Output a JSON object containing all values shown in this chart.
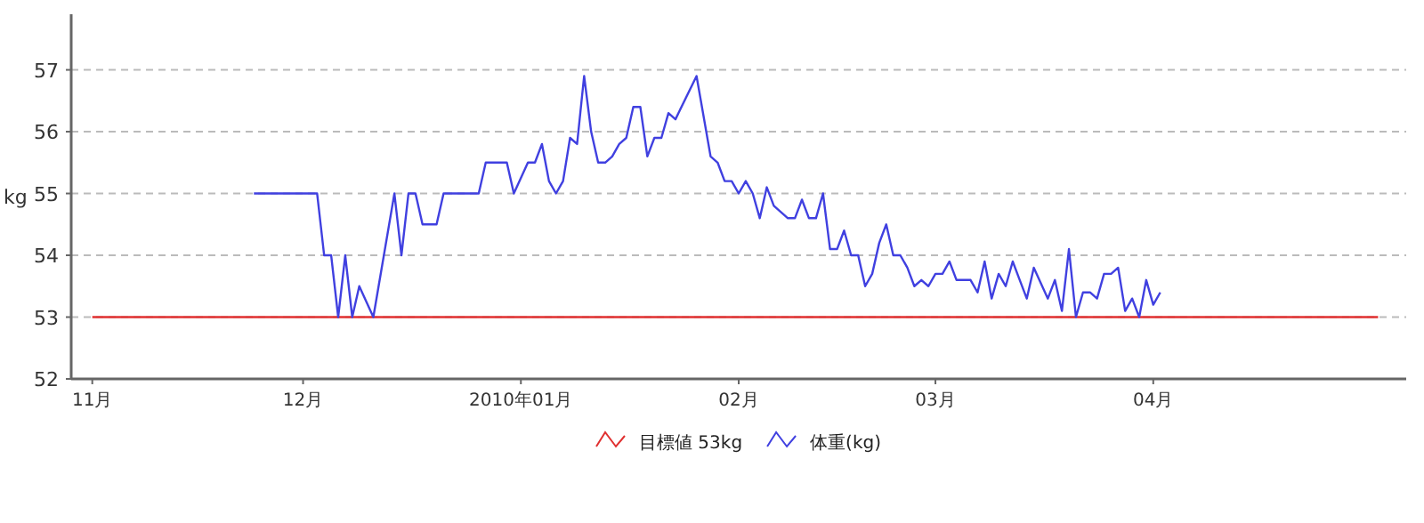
{
  "chart_data": {
    "type": "line",
    "ylabel": "kg",
    "ylim": [
      52,
      57.9
    ],
    "yticks": [
      52,
      53,
      54,
      55,
      56,
      57
    ],
    "xlim": [
      "2009-10-29",
      "2010-05-07"
    ],
    "xticks": [
      {
        "value": "2009-11-01",
        "label": "11月"
      },
      {
        "value": "2009-12-01",
        "label": "12月"
      },
      {
        "value": "2010-01-01",
        "label": "2010年01月"
      },
      {
        "value": "2010-02-01",
        "label": "02月"
      },
      {
        "value": "2010-03-01",
        "label": "03月"
      },
      {
        "value": "2010-04-01",
        "label": "04月"
      }
    ],
    "grid": "y",
    "legend": "bottom",
    "line_style": "solid",
    "series": [
      {
        "name": "目標値 53kg",
        "color": "#e03030",
        "x": [
          "2009-11-01",
          "2010-05-03"
        ],
        "values": [
          53,
          53
        ]
      },
      {
        "name": "体重(kg)",
        "color": "#4040e0",
        "x": [
          "2009-11-24",
          "2009-12-03",
          "2009-12-04",
          "2009-12-05",
          "2009-12-06",
          "2009-12-07",
          "2009-12-08",
          "2009-12-09",
          "2009-12-11",
          "2009-12-14",
          "2009-12-15",
          "2009-12-16",
          "2009-12-17",
          "2009-12-18",
          "2009-12-20",
          "2009-12-21",
          "2009-12-26",
          "2009-12-27",
          "2009-12-30",
          "2009-12-31",
          "2010-01-02",
          "2010-01-03",
          "2010-01-04",
          "2010-01-05",
          "2010-01-06",
          "2010-01-07",
          "2010-01-08",
          "2010-01-09",
          "2010-01-10",
          "2010-01-11",
          "2010-01-12",
          "2010-01-13",
          "2010-01-14",
          "2010-01-15",
          "2010-01-16",
          "2010-01-17",
          "2010-01-18",
          "2010-01-19",
          "2010-01-20",
          "2010-01-21",
          "2010-01-22",
          "2010-01-23",
          "2010-01-26",
          "2010-01-28",
          "2010-01-29",
          "2010-01-30",
          "2010-01-31",
          "2010-02-01",
          "2010-02-02",
          "2010-02-03",
          "2010-02-04",
          "2010-02-05",
          "2010-02-06",
          "2010-02-07",
          "2010-02-08",
          "2010-02-09",
          "2010-02-10",
          "2010-02-11",
          "2010-02-12",
          "2010-02-13",
          "2010-02-14",
          "2010-02-15",
          "2010-02-16",
          "2010-02-17",
          "2010-02-18",
          "2010-02-19",
          "2010-02-20",
          "2010-02-21",
          "2010-02-22",
          "2010-02-23",
          "2010-02-24",
          "2010-02-25",
          "2010-02-26",
          "2010-02-27",
          "2010-02-28",
          "2010-03-01",
          "2010-03-02",
          "2010-03-03",
          "2010-03-04",
          "2010-03-06",
          "2010-03-07",
          "2010-03-08",
          "2010-03-09",
          "2010-03-10",
          "2010-03-11",
          "2010-03-12",
          "2010-03-13",
          "2010-03-14",
          "2010-03-15",
          "2010-03-17",
          "2010-03-18",
          "2010-03-19",
          "2010-03-20",
          "2010-03-21",
          "2010-03-22",
          "2010-03-23",
          "2010-03-24",
          "2010-03-25",
          "2010-03-26",
          "2010-03-27",
          "2010-03-28",
          "2010-03-29",
          "2010-03-30",
          "2010-03-31",
          "2010-04-01",
          "2010-04-02"
        ],
        "values": [
          55,
          55,
          54,
          54,
          53,
          54,
          53,
          53.5,
          53,
          55,
          54,
          55,
          55,
          54.5,
          54.5,
          55,
          55,
          55.5,
          55.5,
          55,
          55.5,
          55.5,
          55.8,
          55.2,
          55,
          55.2,
          55.9,
          55.8,
          56.9,
          56,
          55.5,
          55.5,
          55.6,
          55.8,
          55.9,
          56.4,
          56.4,
          55.6,
          55.9,
          55.9,
          56.3,
          56.2,
          56.9,
          55.6,
          55.5,
          55.2,
          55.2,
          55,
          55.2,
          55,
          54.6,
          55.1,
          54.8,
          54.7,
          54.6,
          54.6,
          54.9,
          54.6,
          54.6,
          55,
          54.1,
          54.1,
          54.4,
          54,
          54,
          53.5,
          53.7,
          54.2,
          54.5,
          54,
          54,
          53.8,
          53.5,
          53.6,
          53.5,
          53.7,
          53.7,
          53.9,
          53.6,
          53.6,
          53.4,
          53.9,
          53.3,
          53.7,
          53.5,
          53.9,
          53.6,
          53.3,
          53.8,
          53.3,
          53.6,
          53.1,
          54.1,
          53,
          53.4,
          53.4,
          53.3,
          53.7,
          53.7,
          53.8,
          53.1,
          53.3,
          53,
          53.6,
          53.2,
          53.4
        ]
      }
    ]
  }
}
